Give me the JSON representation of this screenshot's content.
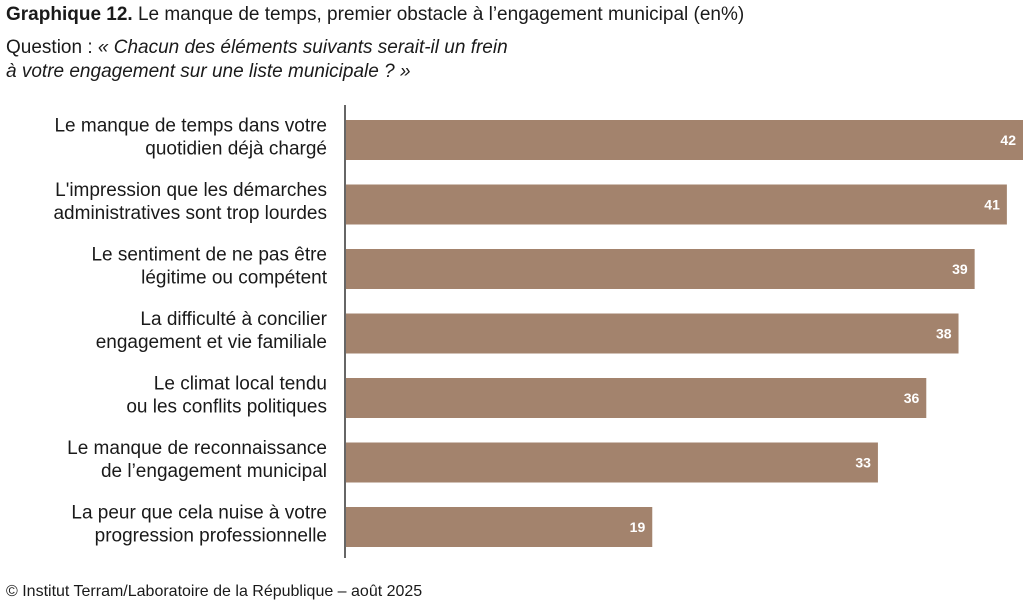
{
  "header": {
    "title_lead": "Graphique 12.",
    "title_rest": " Le manque de temps, premier obstacle à l’engagement municipal (en%)",
    "question_prefix": "Question : ",
    "question_line1": "« Chacun des éléments suivants serait-il un frein",
    "question_line2": "à votre engagement sur une liste municipale ? »"
  },
  "footer": {
    "source": "© Institut Terram/Laboratoire de la République – août 2025"
  },
  "colors": {
    "bar": "#a3836d",
    "axis": "#333333",
    "value_text": "#ffffff"
  },
  "chart_data": {
    "type": "bar",
    "orientation": "horizontal",
    "categories": [
      [
        "Le manque de temps dans votre",
        "quotidien déjà chargé"
      ],
      [
        "L'impression que les démarches",
        "administratives sont trop lourdes"
      ],
      [
        "Le sentiment de ne pas être",
        "légitime ou compétent"
      ],
      [
        "La difficulté à concilier",
        "engagement et vie familiale"
      ],
      [
        "Le climat local tendu",
        "ou les conflits politiques"
      ],
      [
        "Le manque de reconnaissance",
        "de l’engagement municipal"
      ],
      [
        "La peur que cela nuise à votre",
        "progression professionnelle"
      ]
    ],
    "values": [
      42,
      41,
      39,
      38,
      36,
      33,
      19
    ],
    "xlim": [
      0,
      42
    ],
    "grid": false,
    "data_labels": true
  }
}
